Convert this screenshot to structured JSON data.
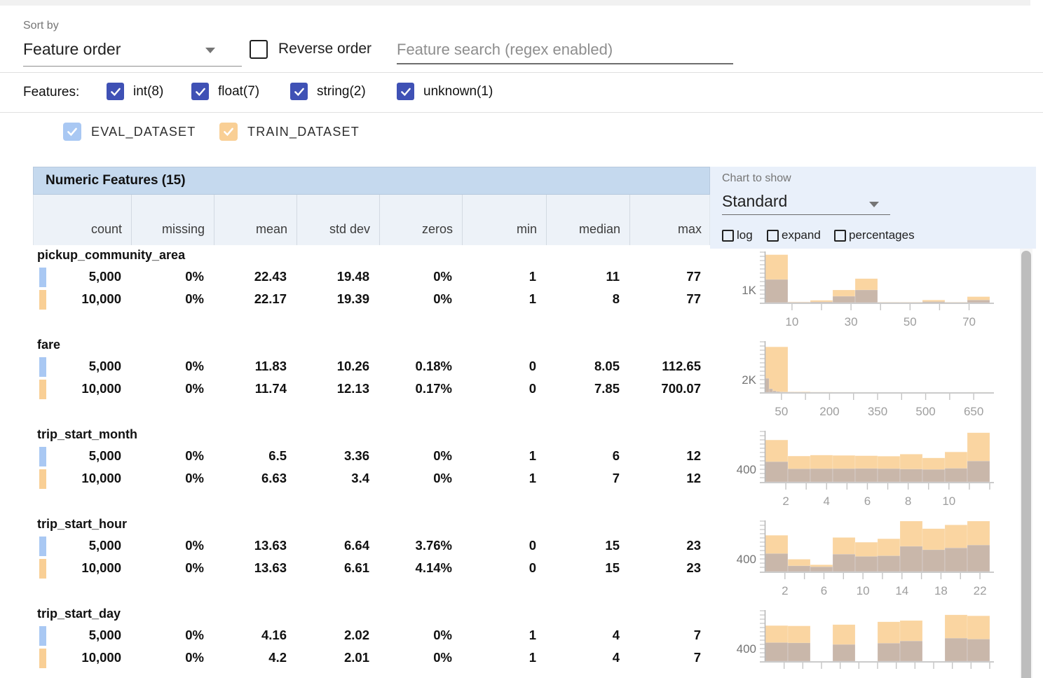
{
  "toolbar": {
    "sort_by_label": "Sort by",
    "sort_by_value": "Feature order",
    "reverse_order_label": "Reverse order",
    "search_placeholder": "Feature search (regex enabled)"
  },
  "feature_filter": {
    "label": "Features:",
    "types": [
      {
        "label": "int(8)",
        "checked": true
      },
      {
        "label": "float(7)",
        "checked": true
      },
      {
        "label": "string(2)",
        "checked": true
      },
      {
        "label": "unknown(1)",
        "checked": true
      }
    ]
  },
  "dataset_legend": [
    {
      "name": "EVAL_DATASET",
      "color": "#a9c8f3",
      "checked": true
    },
    {
      "name": "TRAIN_DATASET",
      "color": "#f9cf95",
      "checked": true
    }
  ],
  "table": {
    "title": "Numeric Features (15)",
    "columns": [
      "count",
      "missing",
      "mean",
      "std dev",
      "zeros",
      "min",
      "median",
      "max"
    ],
    "features": [
      {
        "name": "pickup_community_area",
        "rows": [
          {
            "dataset": "EVAL_DATASET",
            "values": [
              "5,000",
              "0%",
              "22.43",
              "19.48",
              "0%",
              "1",
              "11",
              "77"
            ]
          },
          {
            "dataset": "TRAIN_DATASET",
            "values": [
              "10,000",
              "0%",
              "22.17",
              "19.39",
              "0%",
              "1",
              "8",
              "77"
            ]
          }
        ]
      },
      {
        "name": "fare",
        "rows": [
          {
            "dataset": "EVAL_DATASET",
            "values": [
              "5,000",
              "0%",
              "11.83",
              "10.26",
              "0.18%",
              "0",
              "8.05",
              "112.65"
            ]
          },
          {
            "dataset": "TRAIN_DATASET",
            "values": [
              "10,000",
              "0%",
              "11.74",
              "12.13",
              "0.17%",
              "0",
              "7.85",
              "700.07"
            ]
          }
        ]
      },
      {
        "name": "trip_start_month",
        "rows": [
          {
            "dataset": "EVAL_DATASET",
            "values": [
              "5,000",
              "0%",
              "6.5",
              "3.36",
              "0%",
              "1",
              "6",
              "12"
            ]
          },
          {
            "dataset": "TRAIN_DATASET",
            "values": [
              "10,000",
              "0%",
              "6.63",
              "3.4",
              "0%",
              "1",
              "7",
              "12"
            ]
          }
        ]
      },
      {
        "name": "trip_start_hour",
        "rows": [
          {
            "dataset": "EVAL_DATASET",
            "values": [
              "5,000",
              "0%",
              "13.63",
              "6.64",
              "3.76%",
              "0",
              "15",
              "23"
            ]
          },
          {
            "dataset": "TRAIN_DATASET",
            "values": [
              "10,000",
              "0%",
              "13.63",
              "6.61",
              "4.14%",
              "0",
              "15",
              "23"
            ]
          }
        ]
      },
      {
        "name": "trip_start_day",
        "rows": [
          {
            "dataset": "EVAL_DATASET",
            "values": [
              "5,000",
              "0%",
              "4.16",
              "2.02",
              "0%",
              "1",
              "4",
              "7"
            ]
          },
          {
            "dataset": "TRAIN_DATASET",
            "values": [
              "10,000",
              "0%",
              "4.2",
              "2.01",
              "0%",
              "1",
              "4",
              "7"
            ]
          }
        ]
      }
    ]
  },
  "chart_panel": {
    "label": "Chart to show",
    "selected": "Standard",
    "options": [
      "log",
      "expand",
      "percentages"
    ]
  },
  "chart_data": [
    {
      "feature": "pickup_community_area",
      "type": "bar",
      "y_axis_label": "1K",
      "y_label_value": 1000,
      "x_domain": [
        1,
        77
      ],
      "x_ticks": [
        10,
        20,
        30,
        40,
        50,
        60,
        70
      ],
      "x_labeled_ticks": [
        10,
        30,
        50,
        70
      ],
      "series": [
        {
          "name": "TRAIN_DATASET",
          "role": "train",
          "x_start": 1,
          "bucket_width": 7.6,
          "counts": [
            3800,
            60,
            180,
            1000,
            1900,
            40,
            40,
            200,
            40,
            470
          ]
        },
        {
          "name": "EVAL_DATASET",
          "role": "eval",
          "x_start": 1,
          "bucket_width": 7.6,
          "counts": [
            1830,
            30,
            60,
            500,
            1000,
            20,
            20,
            80,
            20,
            200
          ]
        }
      ]
    },
    {
      "feature": "fare",
      "type": "bar",
      "y_axis_label": "2K",
      "y_label_value": 2000,
      "x_domain": [
        0,
        700
      ],
      "x_ticks": [
        50,
        125,
        200,
        275,
        350,
        425,
        500,
        575,
        650
      ],
      "x_labeled_ticks": [
        50,
        200,
        350,
        500,
        650
      ],
      "series": [
        {
          "name": "TRAIN_DATASET",
          "role": "train",
          "x_start": 0,
          "bucket_width": 70,
          "counts": [
            7200,
            80,
            30,
            15,
            8,
            5,
            4,
            3,
            2,
            10
          ]
        },
        {
          "name": "EVAL_DATASET",
          "role": "eval",
          "x_start": 0,
          "bucket_width": 11.265,
          "counts": [
            2200,
            550,
            220,
            110,
            60,
            30,
            20,
            15,
            10,
            10
          ]
        }
      ]
    },
    {
      "feature": "trip_start_month",
      "type": "bar",
      "y_axis_label": "400",
      "y_label_value": 400,
      "x_domain": [
        1,
        12
      ],
      "x_ticks": [
        2,
        3,
        4,
        5,
        6,
        7,
        8,
        9,
        10,
        11,
        12
      ],
      "x_labeled_ticks": [
        2,
        4,
        6,
        8,
        10
      ],
      "series": [
        {
          "name": "TRAIN_DATASET",
          "role": "train",
          "x_start": 1,
          "bucket_width": 1.1,
          "counts": [
            1330,
            820,
            850,
            840,
            830,
            815,
            880,
            760,
            950,
            1560
          ]
        },
        {
          "name": "EVAL_DATASET",
          "role": "eval",
          "x_start": 1,
          "bucket_width": 1.1,
          "counts": [
            640,
            415,
            420,
            420,
            425,
            420,
            405,
            395,
            430,
            660
          ]
        }
      ]
    },
    {
      "feature": "trip_start_hour",
      "type": "bar",
      "y_axis_label": "400",
      "y_label_value": 400,
      "x_domain": [
        0,
        23
      ],
      "x_ticks": [
        2,
        4,
        6,
        8,
        10,
        12,
        14,
        16,
        18,
        20,
        22
      ],
      "x_labeled_ticks": [
        2,
        6,
        10,
        14,
        18,
        22
      ],
      "series": [
        {
          "name": "TRAIN_DATASET",
          "role": "train",
          "x_start": 0,
          "bucket_width": 2.3,
          "counts": [
            1150,
            390,
            215,
            1080,
            930,
            1040,
            1600,
            1360,
            1480,
            1660
          ]
        },
        {
          "name": "EVAL_DATASET",
          "role": "eval",
          "x_start": 0,
          "bucket_width": 2.3,
          "counts": [
            570,
            180,
            150,
            550,
            480,
            500,
            800,
            690,
            750,
            840
          ]
        }
      ]
    },
    {
      "feature": "trip_start_day",
      "type": "bar",
      "y_axis_label": "400",
      "y_label_value": 400,
      "x_domain": [
        1,
        7
      ],
      "x_ticks": [
        1.5,
        2,
        2.5,
        3,
        3.5,
        4,
        4.5,
        5,
        5.5,
        6,
        6.5,
        7
      ],
      "x_labeled_ticks": [],
      "series": [
        {
          "name": "TRAIN_DATASET",
          "role": "train",
          "x_start": 1,
          "bucket_width": 0.6,
          "counts": [
            1130,
            1120,
            0,
            1160,
            0,
            1250,
            1290,
            0,
            1470,
            1440
          ]
        },
        {
          "name": "EVAL_DATASET",
          "role": "eval",
          "x_start": 1,
          "bucket_width": 0.6,
          "counts": [
            590,
            580,
            0,
            530,
            0,
            570,
            640,
            0,
            730,
            700
          ]
        }
      ]
    }
  ],
  "colors": {
    "accent_indigo": "#3f51b5",
    "eval_swatch": "#a9c8f3",
    "train_swatch": "#f9cf95",
    "train_bar": "#fad5a1",
    "eval_bar_overlay": "rgba(143,146,181,0.45)",
    "table_band": "#c5d9ee",
    "colheader_bg": "#edf2f8",
    "chart_panel_bg": "#e9f0fa",
    "axis": "#c4c4c4",
    "tick_label": "#9e9e9e"
  }
}
